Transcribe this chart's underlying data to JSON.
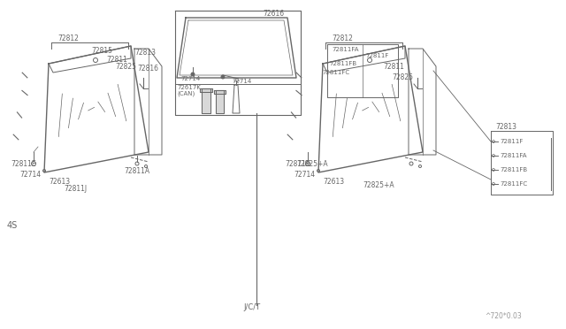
{
  "bg_color": "#ffffff",
  "line_color": "#666666",
  "text_color": "#666666",
  "fig_width": 6.4,
  "fig_height": 3.72,
  "dpi": 100,
  "watermark": "^720*0.03",
  "label_4S": "4S",
  "label_JCT": "J/C/T"
}
